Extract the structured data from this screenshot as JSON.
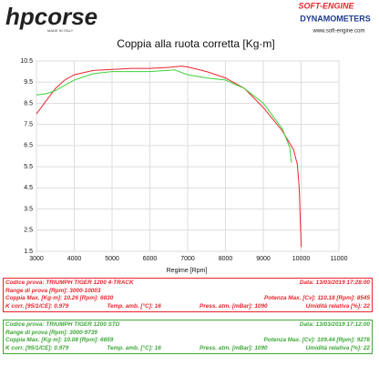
{
  "header": {
    "brand": "hpcorse",
    "brand_tag": "MADE IN ITALY",
    "company": "SOFT-ENGINE",
    "company_sub": "DYNAMOMETERS",
    "website": "www.soft-engine.com"
  },
  "chart_data": {
    "type": "line",
    "title": "Coppia alla ruota corretta [Kg·m]",
    "x_label": "Regime [Rpm]",
    "xlim": [
      3000,
      11000
    ],
    "xticks": [
      3000,
      4000,
      5000,
      6000,
      7000,
      8000,
      9000,
      10000,
      11000
    ],
    "ylim": [
      1.5,
      10.5
    ],
    "yticks": [
      1.5,
      2.5,
      3.5,
      4.5,
      5.5,
      6.5,
      7.5,
      8.5,
      9.5,
      10.5
    ],
    "grid": true,
    "series": [
      {
        "color": "#e8262e",
        "x": [
          3000,
          3250,
          3500,
          3750,
          4000,
          4500,
          5000,
          5500,
          6000,
          6500,
          6830,
          7000,
          7500,
          8000,
          8500,
          9000,
          9500,
          9800,
          9900,
          9950,
          10003
        ],
        "values": [
          8.0,
          8.6,
          9.2,
          9.6,
          9.85,
          10.05,
          10.1,
          10.15,
          10.15,
          10.2,
          10.26,
          10.22,
          10.0,
          9.7,
          9.2,
          8.3,
          7.2,
          6.3,
          5.6,
          4.5,
          1.7
        ]
      },
      {
        "color": "#3fd13a",
        "x": [
          3000,
          3250,
          3500,
          3750,
          4000,
          4500,
          5000,
          5500,
          6000,
          6659,
          7000,
          7500,
          8000,
          8500,
          9000,
          9500,
          9700,
          9739
        ],
        "values": [
          8.9,
          8.95,
          9.1,
          9.35,
          9.6,
          9.9,
          10.0,
          10.0,
          10.0,
          10.08,
          9.85,
          9.7,
          9.6,
          9.2,
          8.5,
          7.3,
          6.4,
          5.7
        ]
      }
    ]
  },
  "runs": [
    {
      "color": "#e8262e",
      "code": "Codice prova: TRIUMPH TIGER 1200 4-TRACK",
      "date": "Data: 13/03/2019   17:28:00",
      "range": "Range di prova [Rpm]: 3000-10003",
      "torque": "Coppia Max. [Kg·m]: 10.26   [Rpm]: 6830",
      "power": "Potenza Max. [Cv]: 110.18   [Rpm]: 8545",
      "kcorr": "K corr. [95/1/CE]: 0.979",
      "temp": "Temp. amb. [°C]: 16",
      "press": "Press. atm. [mBar]: 1090",
      "hum": "Umidità relativa [%]: 22"
    },
    {
      "color": "#3fa83a",
      "code": "Codice prova: TRIUMPH TIGER 1200 STD",
      "date": "Data: 13/03/2019   17:12:00",
      "range": "Range di prova [Rpm]: 3000-9739",
      "torque": "Coppia Max. [Kg·m]: 10.08   [Rpm]: 6659",
      "power": "Potenza Max. [Cv]: 109.44   [Rpm]: 9278",
      "kcorr": "K corr. [95/1/CE]: 0.979",
      "temp": "Temp. amb. [°C]: 16",
      "press": "Press. atm. [mBar]: 1090",
      "hum": "Umidità relativa [%]: 22"
    }
  ]
}
